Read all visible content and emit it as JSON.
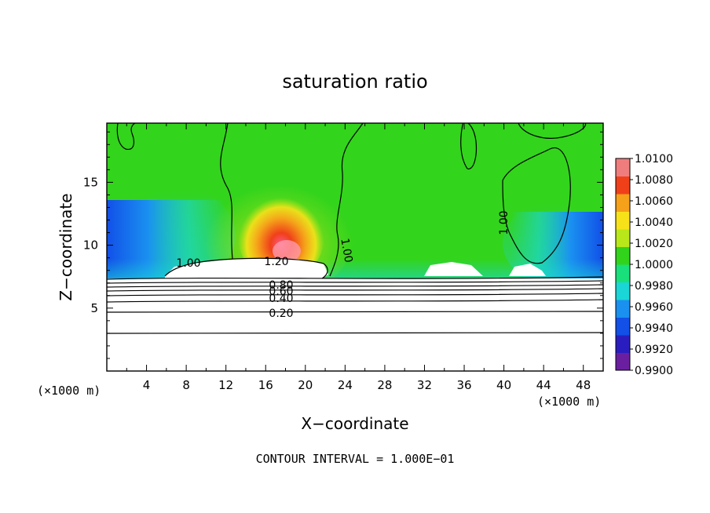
{
  "chart_data": {
    "type": "heatmap",
    "title": "saturation ratio",
    "xlabel": "X−coordinate",
    "ylabel": "Z−coordinate",
    "x_unit": "(×1000 m)",
    "y_unit": "(×1000 m)",
    "xlim": [
      0,
      50
    ],
    "ylim": [
      0,
      19.7
    ],
    "x_ticks": [
      "4",
      "8",
      "12",
      "16",
      "20",
      "24",
      "28",
      "32",
      "36",
      "40",
      "44",
      "48"
    ],
    "y_ticks": [
      "5",
      "10",
      "15"
    ],
    "colorbar": {
      "ticks": [
        "1.0100",
        "1.0080",
        "1.0060",
        "1.0040",
        "1.0020",
        "1.0000",
        "0.9980",
        "0.9960",
        "0.9940",
        "0.9920",
        "0.9900"
      ],
      "min": 0.99,
      "max": 1.01,
      "colors": [
        "#6a1fa0",
        "#2a1dbf",
        "#1250e8",
        "#1a90f0",
        "#1ad6d6",
        "#19e07a",
        "#31d31b",
        "#b8e81a",
        "#f7e21a",
        "#f5a11a",
        "#f0401a",
        "#f07d7d"
      ]
    },
    "contour_labels": [
      "1.20",
      "1.00",
      "1.00",
      "1.00",
      "0.80",
      "0.60",
      "0.40",
      "0.20"
    ],
    "contour_interval": "CONTOUR INTERVAL = 1.000E−01"
  }
}
